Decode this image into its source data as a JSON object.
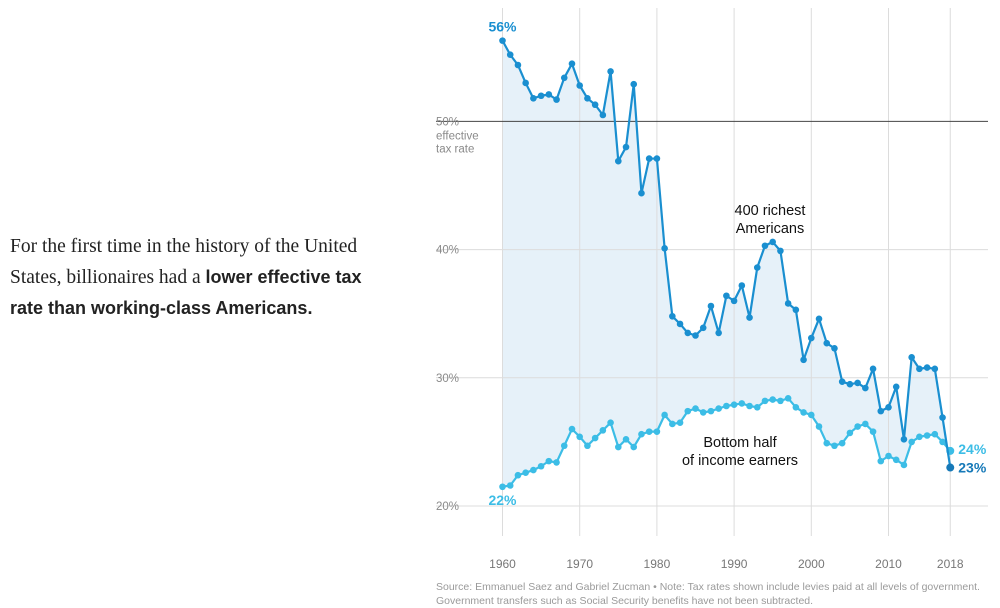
{
  "headline": {
    "normal": "For the first time in the history of the United States, billionaires had a ",
    "bold": "lower effective tax rate than working-class Americans."
  },
  "source_note": "Source: Emmanuel Saez and Gabriel Zucman  •  Note: Tax rates shown include levies paid at all levels of government. Government transfers such as Social Security benefits have not been subtracted.",
  "colors": {
    "richest": "#1a8fd0",
    "richest_dark": "#1679b8",
    "bottom": "#3cbde6",
    "fill": "#e6f1f9",
    "grid": "#dcdcdc",
    "baseline": "#444444",
    "axis_text": "#8a8a8a"
  },
  "chart_data": {
    "type": "line",
    "title": "",
    "xlabel": "",
    "ylabel": "",
    "xlim": [
      1958,
      2019
    ],
    "ylim": [
      19,
      58
    ],
    "x_ticks": [
      {
        "value": 1960,
        "label": "1960"
      },
      {
        "value": 1970,
        "label": "1970"
      },
      {
        "value": 1980,
        "label": "1980"
      },
      {
        "value": 1990,
        "label": "1990"
      },
      {
        "value": 2000,
        "label": "2000"
      },
      {
        "value": 2010,
        "label": "2010"
      },
      {
        "value": 2018,
        "label": "2018"
      }
    ],
    "y_ticks": [
      {
        "value": 20,
        "label": "20%"
      },
      {
        "value": 30,
        "label": "30%"
      },
      {
        "value": 40,
        "label": "40%"
      },
      {
        "value": 50,
        "label": "50%"
      }
    ],
    "reference_line": {
      "value": 50,
      "label_lines": [
        "effective",
        "tax rate"
      ]
    },
    "x": [
      1960,
      1961,
      1962,
      1963,
      1964,
      1965,
      1966,
      1967,
      1968,
      1969,
      1970,
      1971,
      1972,
      1973,
      1974,
      1975,
      1976,
      1977,
      1978,
      1979,
      1980,
      1981,
      1982,
      1983,
      1984,
      1985,
      1986,
      1987,
      1988,
      1989,
      1990,
      1991,
      1992,
      1993,
      1994,
      1995,
      1996,
      1997,
      1998,
      1999,
      2000,
      2001,
      2002,
      2003,
      2004,
      2005,
      2006,
      2007,
      2008,
      2009,
      2010,
      2011,
      2012,
      2013,
      2014,
      2015,
      2016,
      2017,
      2018
    ],
    "series": [
      {
        "name": "400 richest Americans",
        "label_lines": [
          "400 richest",
          "Americans"
        ],
        "start_label": "56%",
        "end_label": "23%",
        "values": [
          56.3,
          55.2,
          54.4,
          53,
          51.8,
          52,
          52.1,
          51.7,
          53.4,
          54.5,
          52.8,
          51.8,
          51.3,
          50.5,
          53.9,
          46.9,
          48,
          52.9,
          44.4,
          47.1,
          47.1,
          40.1,
          34.8,
          34.2,
          33.5,
          33.3,
          33.9,
          35.6,
          33.5,
          36.4,
          36,
          37.2,
          34.7,
          38.6,
          40.3,
          40.6,
          39.9,
          35.8,
          35.3,
          31.4,
          33.1,
          34.6,
          32.7,
          32.3,
          29.7,
          29.5,
          29.6,
          29.2,
          30.7,
          27.4,
          27.7,
          29.3,
          25.2,
          31.6,
          30.7,
          30.8,
          30.7,
          26.9,
          23
        ]
      },
      {
        "name": "Bottom half of income earners",
        "label_lines": [
          "Bottom half",
          "of income earners"
        ],
        "start_label": "22%",
        "end_label": "24%",
        "values": [
          21.5,
          21.6,
          22.4,
          22.6,
          22.8,
          23.1,
          23.5,
          23.4,
          24.7,
          26,
          25.4,
          24.7,
          25.3,
          25.9,
          26.5,
          24.6,
          25.2,
          24.6,
          25.6,
          25.8,
          25.8,
          27.1,
          26.4,
          26.5,
          27.4,
          27.6,
          27.3,
          27.4,
          27.6,
          27.8,
          27.9,
          28,
          27.8,
          27.7,
          28.2,
          28.3,
          28.2,
          28.4,
          27.7,
          27.3,
          27.1,
          26.2,
          24.9,
          24.7,
          24.9,
          25.7,
          26.2,
          26.4,
          25.8,
          23.5,
          23.9,
          23.6,
          23.2,
          25,
          25.4,
          25.5,
          25.6,
          25,
          24.3
        ]
      }
    ]
  }
}
